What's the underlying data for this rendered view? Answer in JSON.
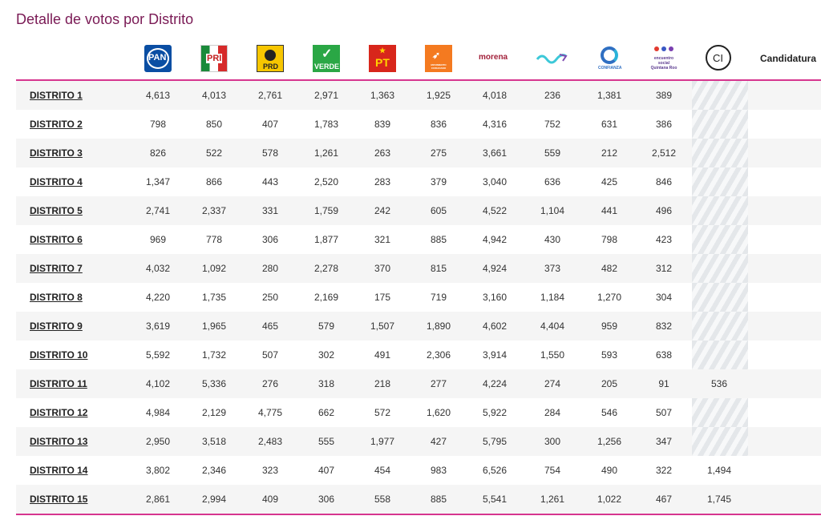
{
  "page": {
    "title": "Detalle de votos por Distrito"
  },
  "header": {
    "parties": [
      {
        "id": "pan",
        "label": "PAN",
        "icon": "pan-logo-icon"
      },
      {
        "id": "pri",
        "label": "PRI",
        "icon": "pri-logo-icon"
      },
      {
        "id": "prd",
        "label": "PRD",
        "icon": "prd-logo-icon"
      },
      {
        "id": "verde",
        "label": "VERDE",
        "icon": "verde-logo-icon"
      },
      {
        "id": "pt",
        "label": "PT",
        "icon": "pt-logo-icon"
      },
      {
        "id": "mc",
        "label": "MOVIMIENTO CIUDADANO",
        "icon": "movimiento-ciudadano-logo-icon"
      },
      {
        "id": "morena",
        "label": "morena",
        "icon": "morena-logo-icon"
      },
      {
        "id": "nueva-alianza",
        "label": "",
        "icon": "nueva-alianza-logo-icon"
      },
      {
        "id": "confianza",
        "label": "CONFIANZA",
        "icon": "confianza-logo-icon"
      },
      {
        "id": "encuentro",
        "label": "encuentro social Quintana Roo",
        "icon": "encuentro-social-logo-icon"
      },
      {
        "id": "ci",
        "label": "CI",
        "icon": "candidato-independiente-logo-icon"
      }
    ],
    "last_column_label": "Candidatura"
  },
  "colors": {
    "accent": "#d6358f",
    "title": "#7a1a55"
  },
  "rows": [
    {
      "district": "DISTRITO 1",
      "values": [
        "4,613",
        "4,013",
        "2,761",
        "2,971",
        "1,363",
        "1,925",
        "4,018",
        "236",
        "1,381",
        "389"
      ],
      "ci": null
    },
    {
      "district": "DISTRITO 2",
      "values": [
        "798",
        "850",
        "407",
        "1,783",
        "839",
        "836",
        "4,316",
        "752",
        "631",
        "386"
      ],
      "ci": null
    },
    {
      "district": "DISTRITO 3",
      "values": [
        "826",
        "522",
        "578",
        "1,261",
        "263",
        "275",
        "3,661",
        "559",
        "212",
        "2,512"
      ],
      "ci": null
    },
    {
      "district": "DISTRITO 4",
      "values": [
        "1,347",
        "866",
        "443",
        "2,520",
        "283",
        "379",
        "3,040",
        "636",
        "425",
        "846"
      ],
      "ci": null
    },
    {
      "district": "DISTRITO 5",
      "values": [
        "2,741",
        "2,337",
        "331",
        "1,759",
        "242",
        "605",
        "4,522",
        "1,104",
        "441",
        "496"
      ],
      "ci": null
    },
    {
      "district": "DISTRITO 6",
      "values": [
        "969",
        "778",
        "306",
        "1,877",
        "321",
        "885",
        "4,942",
        "430",
        "798",
        "423"
      ],
      "ci": null
    },
    {
      "district": "DISTRITO 7",
      "values": [
        "4,032",
        "1,092",
        "280",
        "2,278",
        "370",
        "815",
        "4,924",
        "373",
        "482",
        "312"
      ],
      "ci": null
    },
    {
      "district": "DISTRITO 8",
      "values": [
        "4,220",
        "1,735",
        "250",
        "2,169",
        "175",
        "719",
        "3,160",
        "1,184",
        "1,270",
        "304"
      ],
      "ci": null
    },
    {
      "district": "DISTRITO 9",
      "values": [
        "3,619",
        "1,965",
        "465",
        "579",
        "1,507",
        "1,890",
        "4,602",
        "4,404",
        "959",
        "832"
      ],
      "ci": null
    },
    {
      "district": "DISTRITO 10",
      "values": [
        "5,592",
        "1,732",
        "507",
        "302",
        "491",
        "2,306",
        "3,914",
        "1,550",
        "593",
        "638"
      ],
      "ci": null
    },
    {
      "district": "DISTRITO 11",
      "values": [
        "4,102",
        "5,336",
        "276",
        "318",
        "218",
        "277",
        "4,224",
        "274",
        "205",
        "91"
      ],
      "ci": "536"
    },
    {
      "district": "DISTRITO 12",
      "values": [
        "4,984",
        "2,129",
        "4,775",
        "662",
        "572",
        "1,620",
        "5,922",
        "284",
        "546",
        "507"
      ],
      "ci": null
    },
    {
      "district": "DISTRITO 13",
      "values": [
        "2,950",
        "3,518",
        "2,483",
        "555",
        "1,977",
        "427",
        "5,795",
        "300",
        "1,256",
        "347"
      ],
      "ci": null
    },
    {
      "district": "DISTRITO 14",
      "values": [
        "3,802",
        "2,346",
        "323",
        "407",
        "454",
        "983",
        "6,526",
        "754",
        "490",
        "322"
      ],
      "ci": "1,494"
    },
    {
      "district": "DISTRITO 15",
      "values": [
        "2,861",
        "2,994",
        "409",
        "306",
        "558",
        "885",
        "5,541",
        "1,261",
        "1,022",
        "467"
      ],
      "ci": "1,745"
    }
  ]
}
